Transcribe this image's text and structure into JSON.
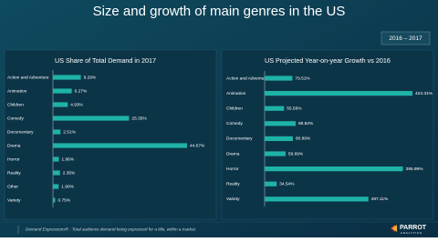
{
  "title": "Size and growth of main genres in the US",
  "period": "2016 – 2017",
  "footer": "Demand Expressions® : Total audience demand being expressed for a title, within a market.",
  "logo": {
    "name": "PARROT",
    "sub": "ANALYTICS"
  },
  "chart_data": [
    {
      "type": "bar",
      "orientation": "horizontal",
      "title": "US Share of Total Demand in 2017",
      "color": "#1fb3a7",
      "categories": [
        "Action and Adventure",
        "Animation",
        "Children",
        "Comedy",
        "Documentary",
        "Drama",
        "Horror",
        "Reality",
        "Other",
        "Variety"
      ],
      "values": [
        9.29,
        6.27,
        4.93,
        25.35,
        2.51,
        44.67,
        1.96,
        2.35,
        1.9,
        0.75
      ],
      "value_labels": [
        "9.29%",
        "6.27%",
        "4.93%",
        "25.35%",
        "2.51%",
        "44.67%",
        "1.96%",
        "2.35%",
        "1.90%",
        "0.75%"
      ]
    },
    {
      "type": "bar",
      "orientation": "horizontal",
      "title": "US Projected Year-on-year Growth vs 2016",
      "color": "#1fb3a7",
      "categories": [
        "Action and Adventure",
        "Animation",
        "Children",
        "Comedy",
        "Documentary",
        "Drama",
        "Horror",
        "Reality",
        "Variety"
      ],
      "values": [
        79.51,
        423.31,
        55.56,
        88.82,
        80.89,
        59.89,
        395.99,
        34.54,
        297.11
      ],
      "value_labels": [
        "79.51%",
        "423.31%",
        "55.56%",
        "88.82%",
        "80.89%",
        "59.89%",
        "395.99%",
        "34.54%",
        "297.11%"
      ]
    }
  ]
}
